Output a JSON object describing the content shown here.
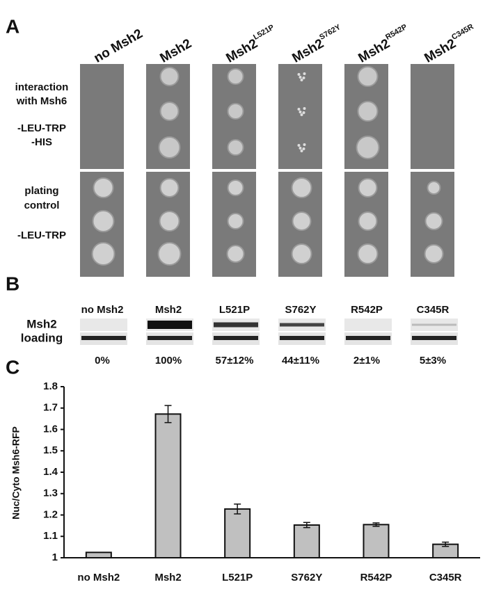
{
  "panel_a": {
    "label": "A",
    "columns": [
      {
        "name": "no Msh2"
      },
      {
        "name": "Msh2"
      },
      {
        "name": "Msh2",
        "sup": "L521P"
      },
      {
        "name": "Msh2",
        "sup": "S762Y"
      },
      {
        "name": "Msh2",
        "sup": "R542P"
      },
      {
        "name": "Msh2",
        "sup": "C345R"
      }
    ],
    "row_labels": [
      [
        "interaction",
        "with Msh6"
      ],
      [
        "-LEU-TRP",
        "-HIS"
      ],
      [
        "plating",
        "control"
      ],
      [
        "-LEU-TRP"
      ]
    ]
  },
  "panel_b": {
    "label": "B",
    "columns": [
      "no Msh2",
      "Msh2",
      "L521P",
      "S762Y",
      "R542P",
      "C345R"
    ],
    "row_labels": [
      "Msh2",
      "loading"
    ],
    "percentages": [
      "0%",
      "100%",
      "57±12%",
      "44±11%",
      "2±1%",
      "5±3%"
    ]
  },
  "chart_data": {
    "type": "bar",
    "panel_label": "C",
    "y_label": "Nuc/Cyto Msh6-RFP",
    "categories": [
      "no Msh2",
      "Msh2",
      "L521P",
      "S762Y",
      "R542P",
      "C345R"
    ],
    "values": [
      1.025,
      1.672,
      1.228,
      1.153,
      1.155,
      1.063
    ],
    "errors": [
      null,
      0.04,
      0.023,
      0.012,
      0.008,
      0.01
    ],
    "color": "#c0c0c0",
    "ylim": [
      1,
      1.8
    ],
    "yticks": [
      1,
      1.1,
      1.2,
      1.3,
      1.4,
      1.5,
      1.6,
      1.7,
      1.8
    ]
  }
}
